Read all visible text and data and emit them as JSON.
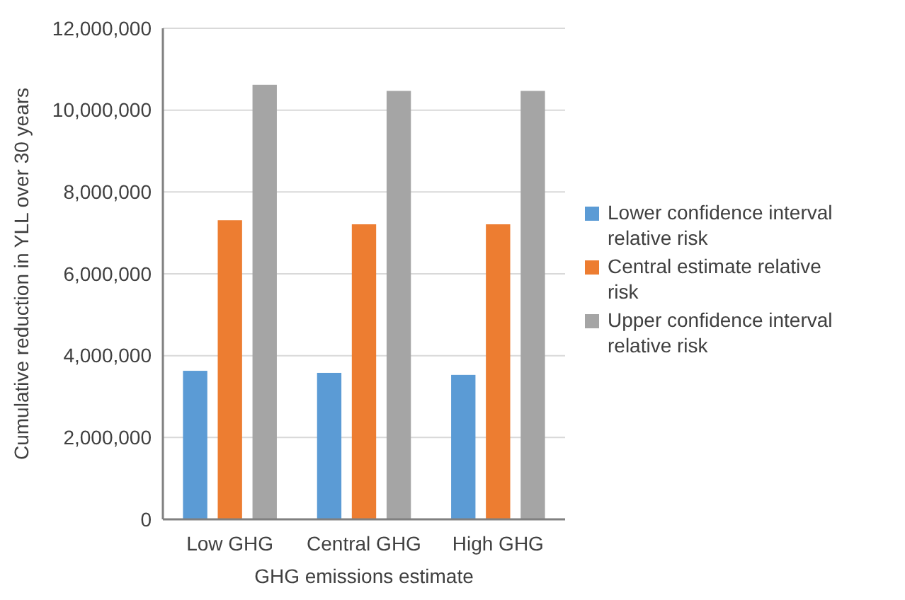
{
  "chart_data": {
    "type": "bar",
    "xlabel": "GHG emissions estimate",
    "ylabel": "Cumulative reduction in YLL over 30 years",
    "categories": [
      "Low GHG",
      "Central GHG",
      "High GHG"
    ],
    "series": [
      {
        "name": "Lower confidence interval relative risk",
        "color": "#5b9bd5",
        "values": [
          3630000,
          3580000,
          3530000
        ]
      },
      {
        "name": "Central estimate relative risk",
        "color": "#ed7d31",
        "values": [
          7310000,
          7210000,
          7210000
        ]
      },
      {
        "name": "Upper confidence interval relative risk",
        "color": "#a5a5a5",
        "values": [
          10620000,
          10470000,
          10470000
        ]
      }
    ],
    "ylim": [
      0,
      12000000
    ],
    "yticks": [
      {
        "value": 0,
        "label": "0"
      },
      {
        "value": 2000000,
        "label": "2,000,000"
      },
      {
        "value": 4000000,
        "label": "4,000,000"
      },
      {
        "value": 6000000,
        "label": "6,000,000"
      },
      {
        "value": 8000000,
        "label": "8,000,000"
      },
      {
        "value": 10000000,
        "label": "10,000,000"
      },
      {
        "value": 12000000,
        "label": "12,000,000"
      }
    ],
    "grid": "y",
    "legend": "right"
  }
}
